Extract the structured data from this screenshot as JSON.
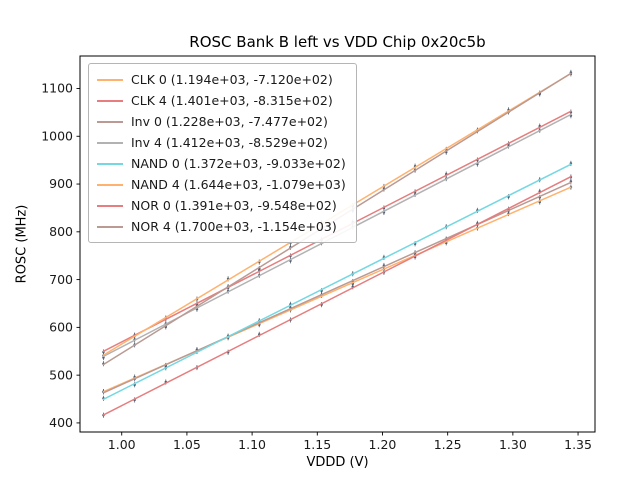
{
  "chart_data": {
    "type": "line",
    "title": "ROSC Bank B left vs VDD Chip 0x20c5b",
    "xlabel": "VDDD (V)",
    "ylabel": "ROSC (MHz)",
    "xlim": [
      0.968,
      1.363
    ],
    "ylim": [
      381,
      1168
    ],
    "xticks": [
      "1.00",
      "1.05",
      "1.10",
      "1.15",
      "1.20",
      "1.25",
      "1.30",
      "1.35"
    ],
    "yticks": [
      "400",
      "500",
      "600",
      "700",
      "800",
      "900",
      "1000",
      "1100"
    ],
    "x_points": [
      0.986,
      1.0099,
      1.0338,
      1.0577,
      1.0816,
      1.1055,
      1.1294,
      1.1533,
      1.1772,
      1.2011,
      1.225,
      1.2489,
      1.2728,
      1.2967,
      1.3206,
      1.3445
    ],
    "marker_color": "#4c5b6e",
    "frame_color": "#000000",
    "grid": false,
    "legend_position": "upper left",
    "series": [
      {
        "name": "CLK 0",
        "label": "CLK 0 (1.194e+03, -7.120e+02)",
        "slope": 1194.0,
        "intercept": -712.0,
        "color": "#ffb26e"
      },
      {
        "name": "CLK 4",
        "label": "CLK 4 (1.401e+03, -8.315e+02)",
        "slope": 1401.0,
        "intercept": -831.5,
        "color": "#e67d7e"
      },
      {
        "name": "Inv 0",
        "label": "Inv 0 (1.228e+03, -7.477e+02)",
        "slope": 1228.0,
        "intercept": -747.7,
        "color": "#ba9a93"
      },
      {
        "name": "Inv 4",
        "label": "Inv 4 (1.412e+03, -8.529e+02)",
        "slope": 1412.0,
        "intercept": -852.9,
        "color": "#b2b2b2"
      },
      {
        "name": "NAND 0",
        "label": "NAND 0 (1.372e+03, -9.033e+02)",
        "slope": 1372.0,
        "intercept": -903.3,
        "color": "#74d8e2"
      },
      {
        "name": "NAND 4",
        "label": "NAND 4 (1.644e+03, -1.079e+03)",
        "slope": 1644.0,
        "intercept": -1079.0,
        "color": "#ffb26e"
      },
      {
        "name": "NOR 0",
        "label": "NOR 0 (1.391e+03, -9.548e+02)",
        "slope": 1391.0,
        "intercept": -954.8,
        "color": "#e67d7e"
      },
      {
        "name": "NOR 4",
        "label": "NOR 4 (1.700e+03, -1.154e+03)",
        "slope": 1700.0,
        "intercept": -1154.0,
        "color": "#ba9a93"
      }
    ]
  }
}
